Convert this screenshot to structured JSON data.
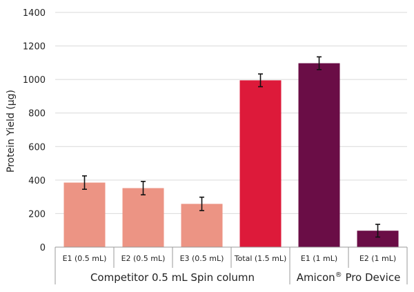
{
  "chart_data": {
    "type": "bar",
    "title": "",
    "xlabel": "",
    "ylabel": "Protein Yield (µg)",
    "ylim": [
      0,
      1400
    ],
    "yticks": [
      0,
      200,
      400,
      600,
      800,
      1000,
      1200,
      1400
    ],
    "grid": true,
    "categories": [
      "E1 (0.5 mL)",
      "E2 (0.5 mL)",
      "E3 (0.5 mL)",
      "Total (1.5 mL)",
      "E1 (1 mL)",
      "E2 (1 mL)"
    ],
    "values": [
      385,
      352,
      258,
      995,
      1097,
      98
    ],
    "errors": [
      40,
      40,
      40,
      38,
      38,
      38
    ],
    "bar_colors": [
      "#ec9484",
      "#ec9484",
      "#ec9484",
      "#dd1a3a",
      "#6a0d46",
      "#6a0d46"
    ],
    "groups": [
      {
        "label_prefix": "Competitor 0.5 mL Spin column",
        "label_suffix": "",
        "start": 0,
        "end": 3
      },
      {
        "label_prefix": "Amicon",
        "label_suffix": " Pro Device",
        "sup": "®",
        "start": 4,
        "end": 5
      }
    ]
  }
}
